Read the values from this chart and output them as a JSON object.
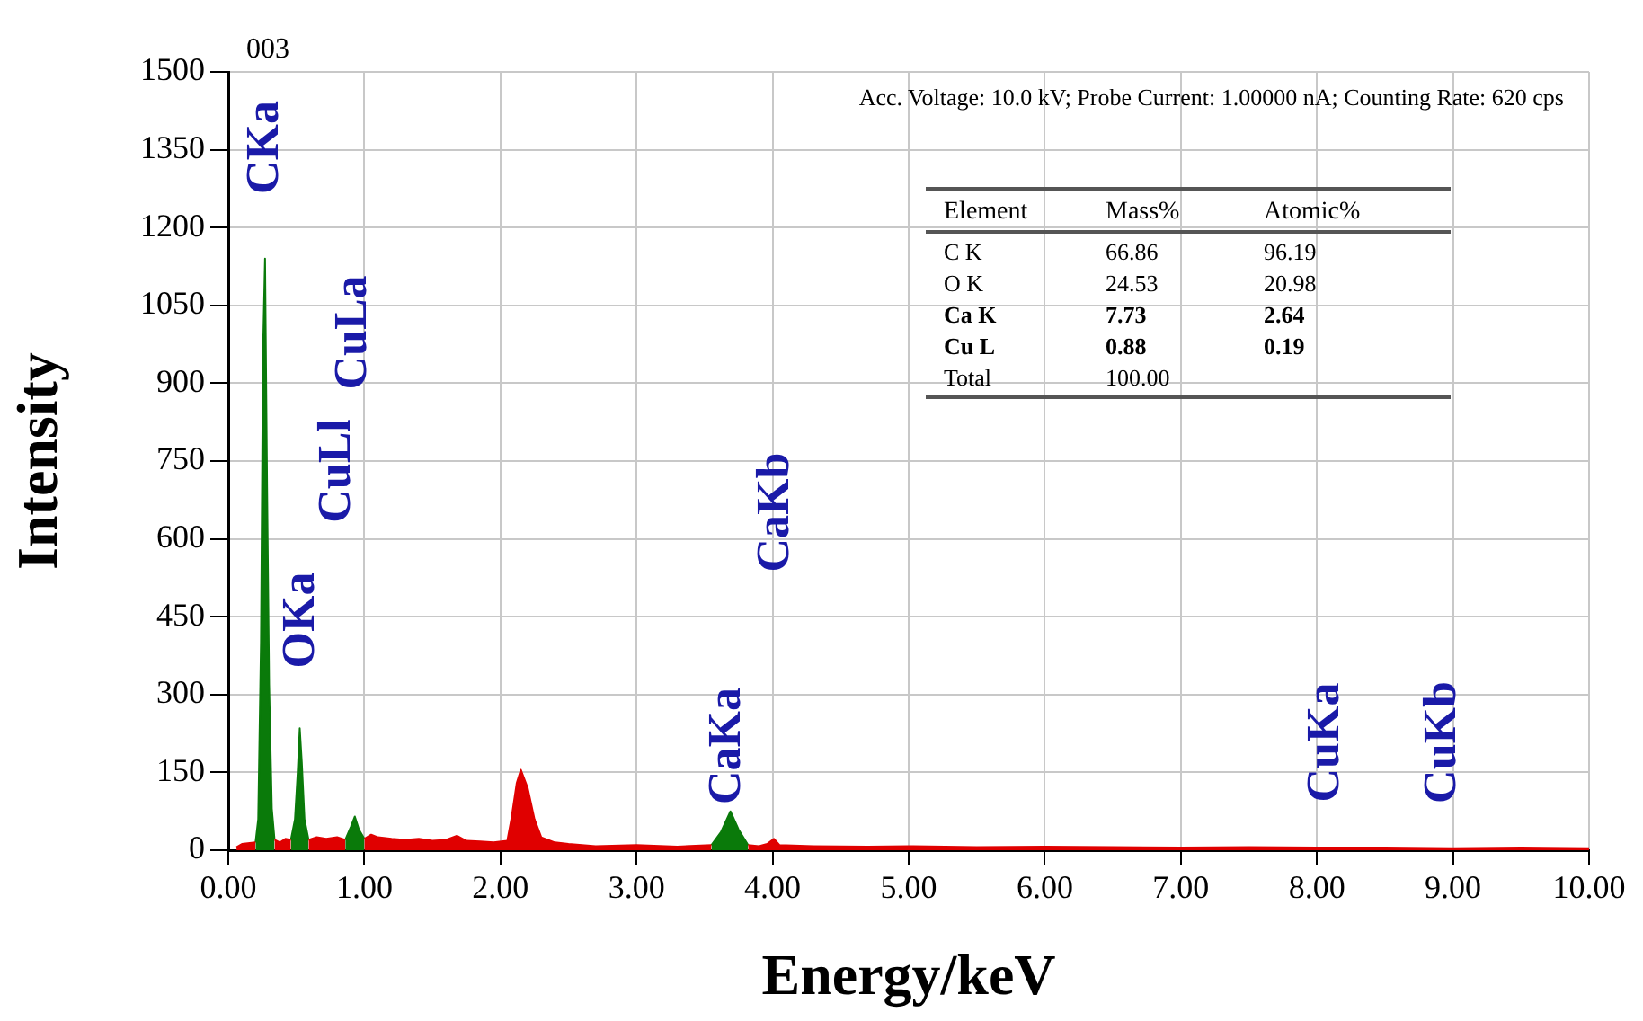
{
  "chart_data": {
    "type": "area",
    "title": "003",
    "xlabel": "Energy/keV",
    "ylabel": "Intensity",
    "xlim": [
      0,
      10
    ],
    "ylim": [
      0,
      1500
    ],
    "xticks": [
      {
        "value": 0,
        "label": "0.00"
      },
      {
        "value": 1,
        "label": "1.00"
      },
      {
        "value": 2,
        "label": "2.00"
      },
      {
        "value": 3,
        "label": "3.00"
      },
      {
        "value": 4,
        "label": "4.00"
      },
      {
        "value": 5,
        "label": "5.00"
      },
      {
        "value": 6,
        "label": "6.00"
      },
      {
        "value": 7,
        "label": "7.00"
      },
      {
        "value": 8,
        "label": "8.00"
      },
      {
        "value": 9,
        "label": "9.00"
      },
      {
        "value": 10,
        "label": "10.00"
      }
    ],
    "yticks": [
      0,
      150,
      300,
      450,
      600,
      750,
      900,
      1050,
      1200,
      1350,
      1500
    ],
    "grid": true,
    "series": [
      {
        "color": "#e00000",
        "x": [
          0.06,
          0.1,
          0.2,
          0.27,
          0.34,
          0.38,
          0.42,
          0.46,
          0.525,
          0.59,
          0.65,
          0.72,
          0.8,
          0.86,
          0.93,
          1.0,
          1.05,
          1.1,
          1.2,
          1.3,
          1.4,
          1.5,
          1.6,
          1.68,
          1.75,
          1.85,
          1.95,
          2.05,
          2.08,
          2.12,
          2.15,
          2.2,
          2.25,
          2.3,
          2.4,
          2.5,
          2.7,
          3.0,
          3.3,
          3.55,
          3.69,
          3.82,
          3.9,
          3.96,
          4.01,
          4.05,
          4.3,
          4.7,
          5.0,
          5.5,
          6.0,
          6.5,
          7.0,
          7.5,
          8.0,
          8.5,
          9.0,
          9.5,
          10.0
        ],
        "values": [
          6,
          12,
          15,
          null,
          20,
          15,
          22,
          20,
          null,
          20,
          25,
          22,
          25,
          20,
          null,
          22,
          30,
          25,
          22,
          20,
          22,
          18,
          20,
          28,
          18,
          17,
          15,
          18,
          60,
          130,
          155,
          120,
          60,
          25,
          15,
          12,
          8,
          10,
          7,
          10,
          null,
          10,
          8,
          12,
          22,
          10,
          8,
          7,
          8,
          6,
          7,
          6,
          5,
          6,
          5,
          5,
          4,
          5,
          4
        ]
      },
      {
        "color": "#0a7a0a",
        "x": [
          0.2,
          0.22,
          0.24,
          0.255,
          0.27,
          0.285,
          0.3,
          0.32,
          0.34,
          0.4,
          0.46,
          0.49,
          0.51,
          0.525,
          0.54,
          0.56,
          0.59,
          0.7,
          0.86,
          0.9,
          0.93,
          0.96,
          1.0,
          2.0,
          3.55,
          3.62,
          3.69,
          3.75,
          3.82
        ],
        "values": [
          15,
          60,
          400,
          960,
          1140,
          700,
          320,
          80,
          20,
          null,
          20,
          60,
          150,
          235,
          170,
          60,
          20,
          null,
          20,
          45,
          65,
          40,
          22,
          null,
          10,
          35,
          75,
          40,
          10
        ]
      }
    ],
    "annotations": [
      "Acc. Voltage: 10.0 kV; Probe Current: 1.00000 nA; Counting Rate: 620 cps",
      "CKa",
      "OKa",
      "CuLl",
      "CuLa",
      "CaKa",
      "CaKb",
      "CuKa",
      "CuKb",
      "Element",
      "Mass%",
      "Atomic%",
      "C K",
      "66.86",
      "96.19",
      "O K",
      "24.53",
      "20.98",
      "Ca K",
      "7.73",
      "2.64",
      "Cu L",
      "0.88",
      "0.19",
      "Total",
      "100.00"
    ]
  }
}
